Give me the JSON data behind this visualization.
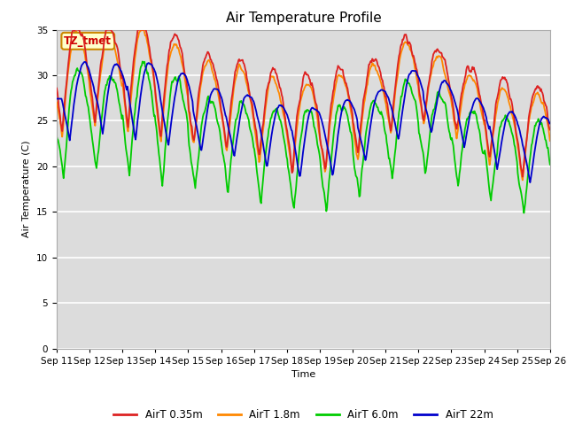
{
  "title": "Air Temperature Profile",
  "xlabel": "Time",
  "ylabel": "Air Temperature (C)",
  "ylim": [
    0,
    35
  ],
  "annotation_text": "TZ_tmet",
  "annotation_color": "#cc0000",
  "annotation_bg": "#ffffcc",
  "annotation_border": "#cc8800",
  "bg_color": "#dcdcdc",
  "grid_color": "white",
  "line_colors": {
    "AirT 0.35m": "#dd2222",
    "AirT 1.8m": "#ff8800",
    "AirT 6.0m": "#00cc00",
    "AirT 22m": "#0000cc"
  },
  "tick_labels": [
    "Sep 11",
    "Sep 12",
    "Sep 13",
    "Sep 14",
    "Sep 15",
    "Sep 16",
    "Sep 17",
    "Sep 18",
    "Sep 19",
    "Sep 20",
    "Sep 21",
    "Sep 22",
    "Sep 23",
    "Sep 24",
    "Sep 25",
    "Sep 26"
  ],
  "title_fontsize": 11,
  "label_fontsize": 8,
  "tick_fontsize": 7.5
}
